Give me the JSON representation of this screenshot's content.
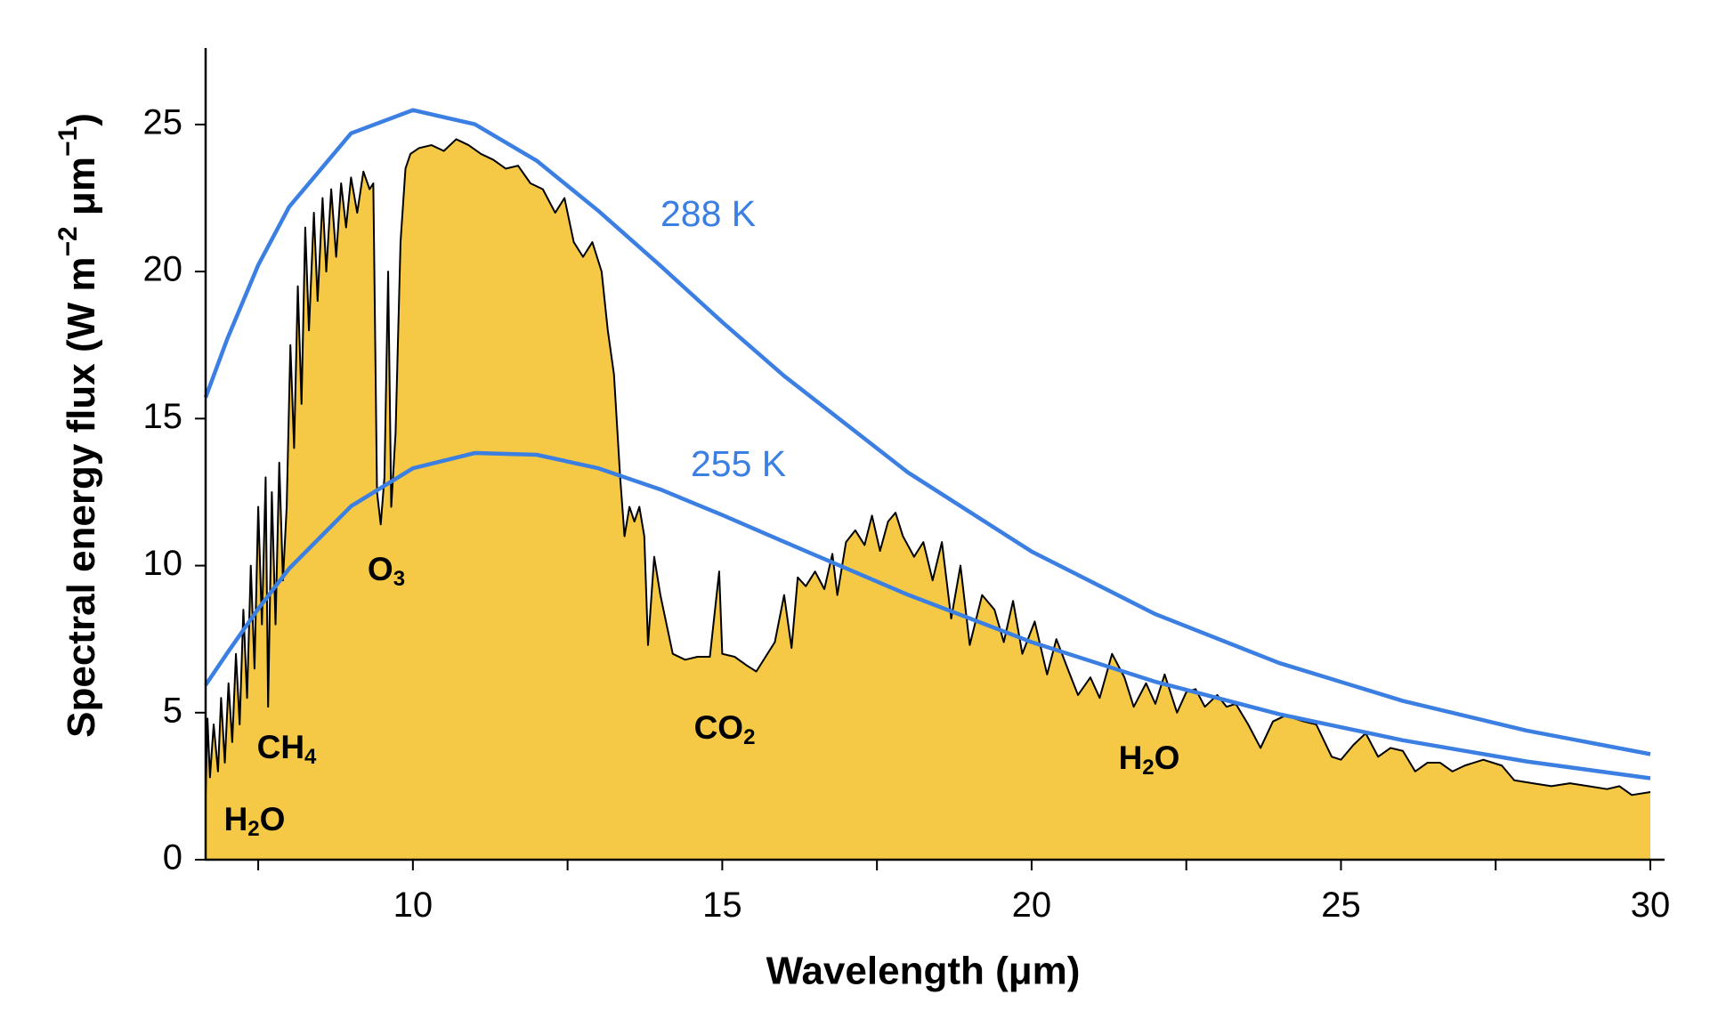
{
  "chart_data": {
    "type": "line",
    "xlabel": "Wavelength (μm)",
    "ylabel": "Spectral energy flux (W m−2 μm−1)",
    "xlim": [
      6.65,
      30
    ],
    "ylim": [
      0,
      27.6
    ],
    "xticks": [
      10,
      15,
      20,
      25,
      30
    ],
    "xminorticks": [
      7.5,
      12.5,
      17.5,
      22.5,
      27.5
    ],
    "yticks": [
      0,
      5,
      10,
      15,
      20,
      25
    ],
    "annotations": [
      "H2O",
      "CH4",
      "O3",
      "CO2",
      "H2O"
    ],
    "series": [
      {
        "type": "area",
        "color": "#f5c945",
        "edgecolor": "#000000",
        "x": [
          6.65,
          6.68,
          6.72,
          6.78,
          6.85,
          6.9,
          6.96,
          7.02,
          7.08,
          7.14,
          7.2,
          7.26,
          7.32,
          7.38,
          7.44,
          7.5,
          7.56,
          7.62,
          7.66,
          7.72,
          7.78,
          7.84,
          7.9,
          7.96,
          8.02,
          8.08,
          8.14,
          8.2,
          8.26,
          8.32,
          8.4,
          8.46,
          8.54,
          8.6,
          8.68,
          8.76,
          8.84,
          8.92,
          9.0,
          9.1,
          9.2,
          9.3,
          9.36,
          9.42,
          9.48,
          9.54,
          9.6,
          9.65,
          9.72,
          9.8,
          9.88,
          9.96,
          10.1,
          10.3,
          10.5,
          10.7,
          10.9,
          11.1,
          11.3,
          11.5,
          11.7,
          11.9,
          12.1,
          12.3,
          12.45,
          12.6,
          12.75,
          12.9,
          13.05,
          13.15,
          13.25,
          13.35,
          13.42,
          13.5,
          13.58,
          13.66,
          13.74,
          13.8,
          13.9,
          14.0,
          14.1,
          14.2,
          14.4,
          14.6,
          14.8,
          14.95,
          15.0,
          15.2,
          15.4,
          15.55,
          15.7,
          15.85,
          16.0,
          16.12,
          16.22,
          16.35,
          16.5,
          16.65,
          16.78,
          16.86,
          17.0,
          17.15,
          17.3,
          17.42,
          17.55,
          17.68,
          17.8,
          17.92,
          18.1,
          18.25,
          18.4,
          18.55,
          18.7,
          18.85,
          19.0,
          19.2,
          19.4,
          19.55,
          19.7,
          19.85,
          20.05,
          20.25,
          20.4,
          20.6,
          20.75,
          20.95,
          21.1,
          21.3,
          21.5,
          21.65,
          21.85,
          22.0,
          22.15,
          22.35,
          22.5,
          22.65,
          22.8,
          23.0,
          23.15,
          23.3,
          23.5,
          23.7,
          23.9,
          24.1,
          24.4,
          24.6,
          24.85,
          25.0,
          25.2,
          25.4,
          25.6,
          25.8,
          26.0,
          26.2,
          26.4,
          26.6,
          26.8,
          27.0,
          27.3,
          27.6,
          27.8,
          28.1,
          28.4,
          28.7,
          29.0,
          29.3,
          29.5,
          29.7,
          30.0
        ],
        "values": [
          2.2,
          4.8,
          2.8,
          4.6,
          3.0,
          5.5,
          3.3,
          6.0,
          4.0,
          7.0,
          4.6,
          8.5,
          5.5,
          10.0,
          6.5,
          12.0,
          8.0,
          13.0,
          5.2,
          12.5,
          8.0,
          13.5,
          9.5,
          12.0,
          17.5,
          14.0,
          19.5,
          15.5,
          21.5,
          18.0,
          22.0,
          19.0,
          22.5,
          20.0,
          22.8,
          20.5,
          23.0,
          21.5,
          23.2,
          22.0,
          23.4,
          22.8,
          23.0,
          12.5,
          11.4,
          13.0,
          20.0,
          12.0,
          14.5,
          21.0,
          23.5,
          24.0,
          24.2,
          24.3,
          24.1,
          24.5,
          24.3,
          24.0,
          23.8,
          23.5,
          23.6,
          23.0,
          22.8,
          22.0,
          22.5,
          21.0,
          20.5,
          21.0,
          20.0,
          18.0,
          16.5,
          13.0,
          11.0,
          12.0,
          11.5,
          12.0,
          11.0,
          7.3,
          10.3,
          9.0,
          8.0,
          7.0,
          6.8,
          6.9,
          6.9,
          9.8,
          7.0,
          6.9,
          6.6,
          6.4,
          6.9,
          7.4,
          9.0,
          7.2,
          9.6,
          9.3,
          9.8,
          9.2,
          10.4,
          9.0,
          10.8,
          11.2,
          10.7,
          11.7,
          10.5,
          11.5,
          11.8,
          11.0,
          10.3,
          10.8,
          9.5,
          10.8,
          8.2,
          10.0,
          7.3,
          9.0,
          8.5,
          7.4,
          8.8,
          7.0,
          8.1,
          6.3,
          7.5,
          6.4,
          5.6,
          6.2,
          5.5,
          7.0,
          6.2,
          5.2,
          6.0,
          5.3,
          6.3,
          5.0,
          5.7,
          5.8,
          5.2,
          5.6,
          5.2,
          5.3,
          4.6,
          3.8,
          4.7,
          4.9,
          4.7,
          4.6,
          3.5,
          3.4,
          3.9,
          4.3,
          3.5,
          3.8,
          3.7,
          3.0,
          3.3,
          3.3,
          3.0,
          3.2,
          3.4,
          3.2,
          2.7,
          2.6,
          2.5,
          2.6,
          2.5,
          2.4,
          2.5,
          2.2,
          2.3
        ]
      },
      {
        "type": "line",
        "name": "288 K",
        "color": "#3b7fe3",
        "x": [
          6.65,
          7,
          7.5,
          8,
          9,
          10,
          11,
          12,
          13,
          14,
          15,
          16,
          18,
          20,
          22,
          24,
          26,
          28,
          30
        ],
        "values": [
          15.72,
          17.71,
          20.22,
          22.2,
          24.7,
          25.49,
          25.01,
          23.77,
          22.06,
          20.2,
          18.28,
          16.45,
          13.17,
          10.48,
          8.35,
          6.69,
          5.4,
          4.39,
          3.59
        ]
      },
      {
        "type": "line",
        "name": "255 K",
        "color": "#3b7fe3",
        "x": [
          6.65,
          7,
          7.5,
          8,
          9,
          10,
          11,
          12,
          13,
          14,
          15,
          16,
          18,
          20,
          22,
          24,
          26,
          28,
          30
        ],
        "values": [
          5.94,
          7.03,
          8.53,
          9.9,
          12.02,
          13.31,
          13.83,
          13.77,
          13.31,
          12.59,
          11.72,
          10.81,
          9.01,
          7.4,
          6.05,
          4.95,
          4.06,
          3.34,
          2.77
        ]
      }
    ]
  }
}
